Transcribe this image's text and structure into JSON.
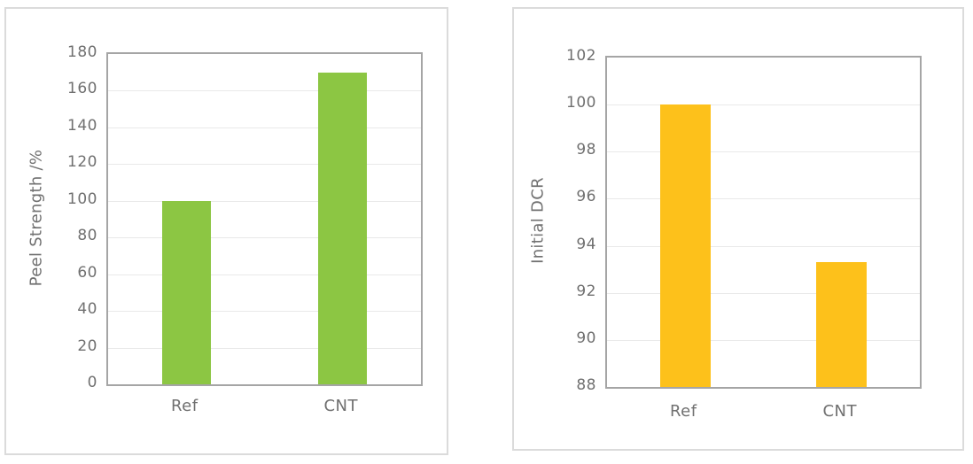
{
  "page": {
    "background": "#ffffff"
  },
  "chart_data": [
    {
      "type": "bar",
      "categories": [
        "Ref",
        "CNT"
      ],
      "values": [
        100,
        170
      ],
      "title": "",
      "xlabel": "",
      "ylabel": "Peel Strength /%",
      "ylim": [
        0,
        180
      ],
      "ytick_step": 20,
      "yticks": [
        0,
        20,
        40,
        60,
        80,
        100,
        120,
        140,
        160,
        180
      ],
      "bar_color": "#8cc643",
      "grid": true,
      "legend": "none"
    },
    {
      "type": "bar",
      "categories": [
        "Ref",
        "CNT"
      ],
      "values": [
        100,
        93.3
      ],
      "title": "",
      "xlabel": "",
      "ylabel": "Initial DCR",
      "ylim": [
        88,
        102
      ],
      "ytick_step": 2,
      "yticks": [
        88,
        90,
        92,
        94,
        96,
        98,
        100,
        102
      ],
      "bar_color": "#fdc11b",
      "grid": true,
      "legend": "none"
    }
  ],
  "colors": {
    "bar_green": "#8cc643",
    "bar_yellow": "#fdc11b",
    "plot_border": "#a5a5a5",
    "card_border": "#dbdbdb",
    "gridline": "#e9e9e9",
    "label_text": "#707070"
  }
}
